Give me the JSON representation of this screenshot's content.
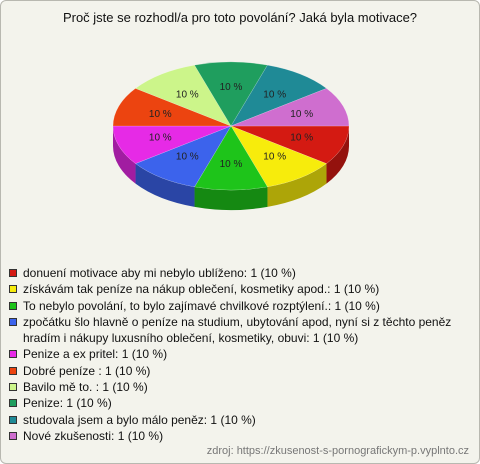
{
  "chart_data": {
    "type": "pie",
    "title": "Proč jste se rozhodl/a pro toto povolání? Jaká byla motivace?",
    "categories": [
      "donuení motivace aby mi nebylo ublíženo: 1 (10 %)",
      "získávám tak peníze na nákup oblečení, kosmetiky apod.: 1 (10 %)",
      "To nebylo povolání, to bylo zajímavé chvilkové rozptýlení.: 1 (10 %)",
      "zpočátku šlo hlavně o peníze na studium, ubytování apod, nyní si z těchto peněz hradím i nákupy luxusního oblečení, kosmetiky, obuvi: 1 (10 %)",
      "Penize a ex pritel: 1 (10 %)",
      "Dobré peníze : 1 (10 %)",
      "Bavilo mě to. : 1 (10 %)",
      "Penize: 1 (10 %)",
      "studovala jsem a bylo málo peněz: 1 (10 %)",
      "Nové zkušenosti: 1 (10 %)"
    ],
    "values": [
      10,
      10,
      10,
      10,
      10,
      10,
      10,
      10,
      10,
      10
    ],
    "value_labels": [
      "10 %",
      "10 %",
      "10 %",
      "10 %",
      "10 %",
      "10 %",
      "10 %",
      "10 %",
      "10 %",
      "10 %"
    ],
    "colors": [
      "#d41a12",
      "#f7ec0c",
      "#1ec41a",
      "#3c63ec",
      "#e62ae6",
      "#ec4410",
      "#ccf58a",
      "#1f9e5e",
      "#1f8a96",
      "#cf6ecf"
    ],
    "source": "zdroj: https://zkusenost-s-pornografickym-p.vyplnto.cz"
  }
}
